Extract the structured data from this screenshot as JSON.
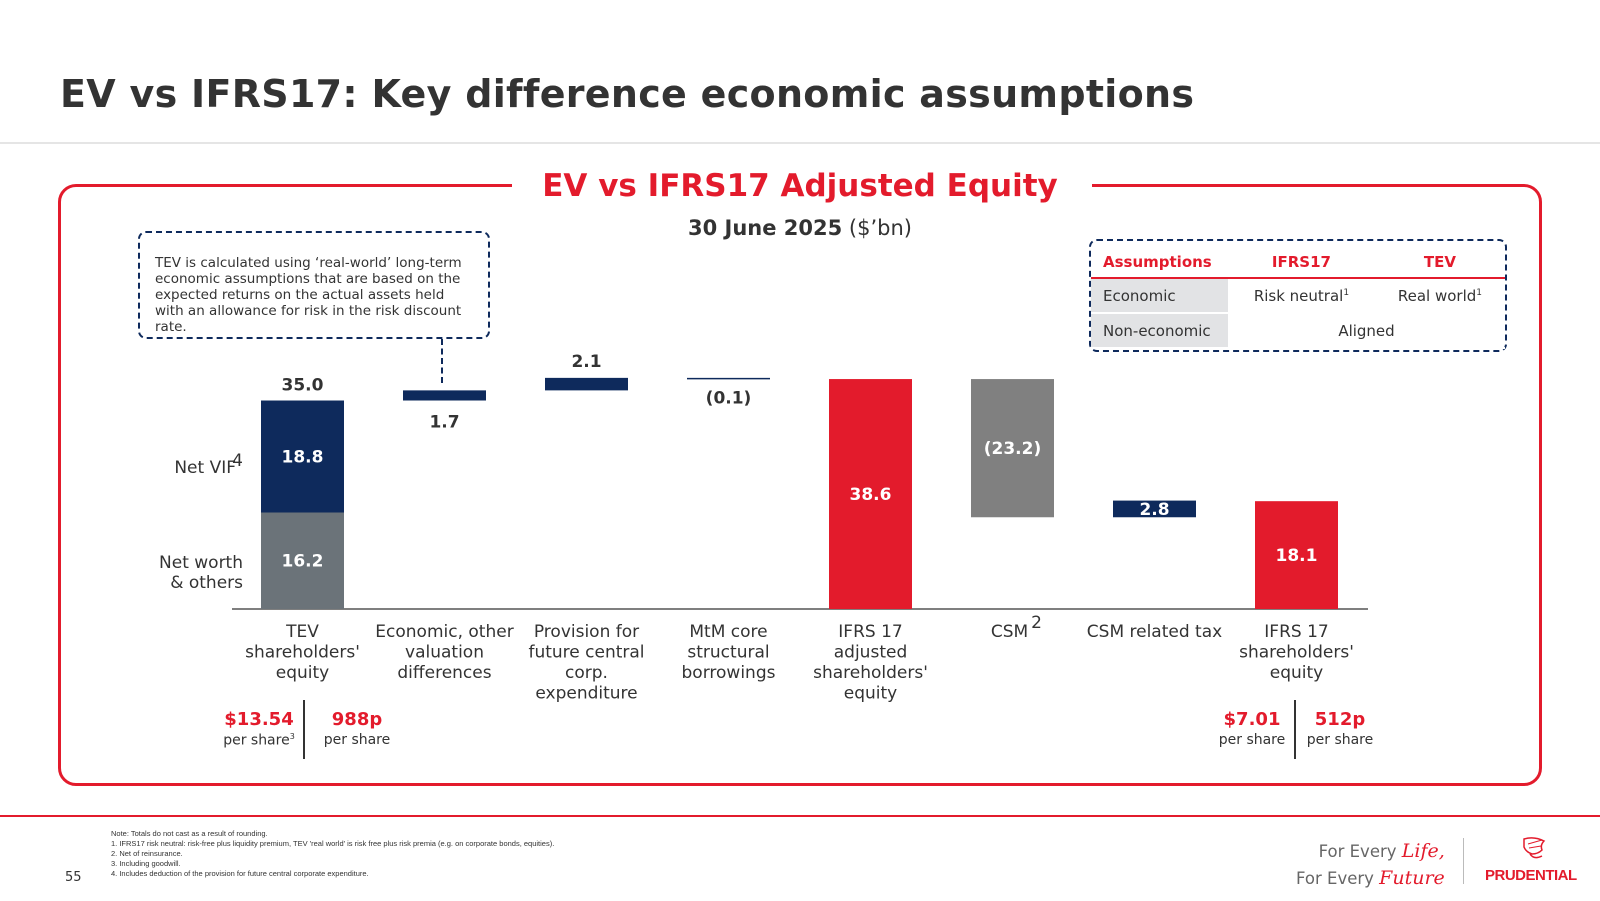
{
  "page": {
    "title": "EV vs IFRS17: Key difference economic assumptions",
    "page_number": "55",
    "tagline_prefix_1": "For Every",
    "tagline_script_1": "Life,",
    "tagline_prefix_2": "For Every",
    "tagline_script_2": "Future",
    "logo_text": "PRUDENTIAL"
  },
  "chart_header": {
    "title": "EV vs IFRS17 Adjusted Equity",
    "subtitle_bold": "30 June 2025",
    "subtitle_unit": " ($’bn)"
  },
  "note_box": {
    "text": "TEV is calculated using ‘real-world’ long-term economic assumptions that are based on the expected returns on the actual assets held with an allowance for risk in the risk discount rate."
  },
  "assumptions_table": {
    "headers": [
      "Assumptions",
      "IFRS17",
      "TEV"
    ],
    "row1": {
      "label": "Economic",
      "ifrs17": "Risk neutral",
      "ifrs17_sup": "1",
      "tev": "Real world",
      "tev_sup": "1"
    },
    "row2": {
      "label": "Non-economic",
      "merged": "Aligned"
    }
  },
  "colors": {
    "navy": "#0e2a5c",
    "grey_dark": "#6b7379",
    "grey_mid": "#808080",
    "red": "#e31b2c"
  },
  "chart_data": {
    "type": "bar",
    "subtype": "waterfall",
    "unit": "$bn",
    "categories": [
      "TEV shareholders' equity",
      "Economic, other valuation differences",
      "Provision for future central corp. expenditure",
      "MtM core structural borrowings",
      "IFRS 17 adjusted shareholders' equity",
      "CSM 2",
      "CSM related tax",
      "IFRS 17 shareholders' equity"
    ],
    "category_lines": [
      [
        "TEV",
        "shareholders'",
        "equity"
      ],
      [
        "Economic, other",
        "valuation",
        "differences"
      ],
      [
        "Provision for",
        "future central",
        "corp.",
        "expenditure"
      ],
      [
        "MtM core",
        "structural",
        "borrowings"
      ],
      [
        "IFRS 17",
        "adjusted",
        "shareholders'",
        "equity"
      ],
      [
        "CSM",
        "2"
      ],
      [
        "CSM related tax"
      ],
      [
        "IFRS 17",
        "shareholders'",
        "equity"
      ]
    ],
    "ylim": [
      0,
      40
    ],
    "bars": [
      {
        "kind": "stack",
        "segments": [
          {
            "name": "Net worth & others",
            "value": 16.2,
            "label": "16.2",
            "color": "#6b7379"
          },
          {
            "name": "Net VIF4",
            "value": 18.8,
            "label": "18.8",
            "color": "#0e2a5c"
          }
        ],
        "total_label": "35.0",
        "total": 35.0
      },
      {
        "kind": "delta",
        "start": 35.0,
        "value": 1.7,
        "label": "1.7",
        "color": "#0e2a5c",
        "label_pos": "below"
      },
      {
        "kind": "delta",
        "start": 36.7,
        "value": 2.1,
        "label": "2.1",
        "color": "#0e2a5c",
        "label_pos": "above"
      },
      {
        "kind": "delta",
        "start": 38.8,
        "value": -0.1,
        "label": "(0.1)",
        "color": "#0e2a5c",
        "label_pos": "below",
        "thin": true
      },
      {
        "kind": "total",
        "value": 38.6,
        "label": "38.6",
        "color": "#e31b2c",
        "label_pos": "inside"
      },
      {
        "kind": "delta",
        "start": 38.6,
        "value": -23.2,
        "label": "(23.2)",
        "color": "#808080",
        "label_pos": "inside"
      },
      {
        "kind": "delta",
        "start": 15.4,
        "value": 2.8,
        "label": "2.8",
        "color": "#0e2a5c",
        "label_pos": "inside"
      },
      {
        "kind": "total",
        "value": 18.1,
        "label": "18.1",
        "color": "#e31b2c",
        "label_pos": "inside"
      }
    ],
    "segment_legend": {
      "net_vif": "Net VIF",
      "net_vif_sup": "4",
      "net_worth_line1": "Net worth",
      "net_worth_line2": "& others"
    }
  },
  "per_share": {
    "tev_usd": "$13.54",
    "tev_usd_unit": "per share",
    "tev_usd_sup": "3",
    "tev_gbp": "988p",
    "tev_gbp_unit": "per share",
    "ifrs_usd": "$7.01",
    "ifrs_usd_unit": "per share",
    "ifrs_gbp": "512p",
    "ifrs_gbp_unit": "per share"
  },
  "footnotes": {
    "note": "Note: Totals do not cast as a result of rounding.",
    "items": [
      "1.  IFRS17 risk neutral: risk-free plus liquidity premium, TEV 'real world' is risk free plus risk premia (e.g. on corporate bonds, equities).",
      "2.  Net of reinsurance.",
      "3.  Including goodwill.",
      "4.  Includes deduction of the provision for future central corporate expenditure."
    ]
  }
}
